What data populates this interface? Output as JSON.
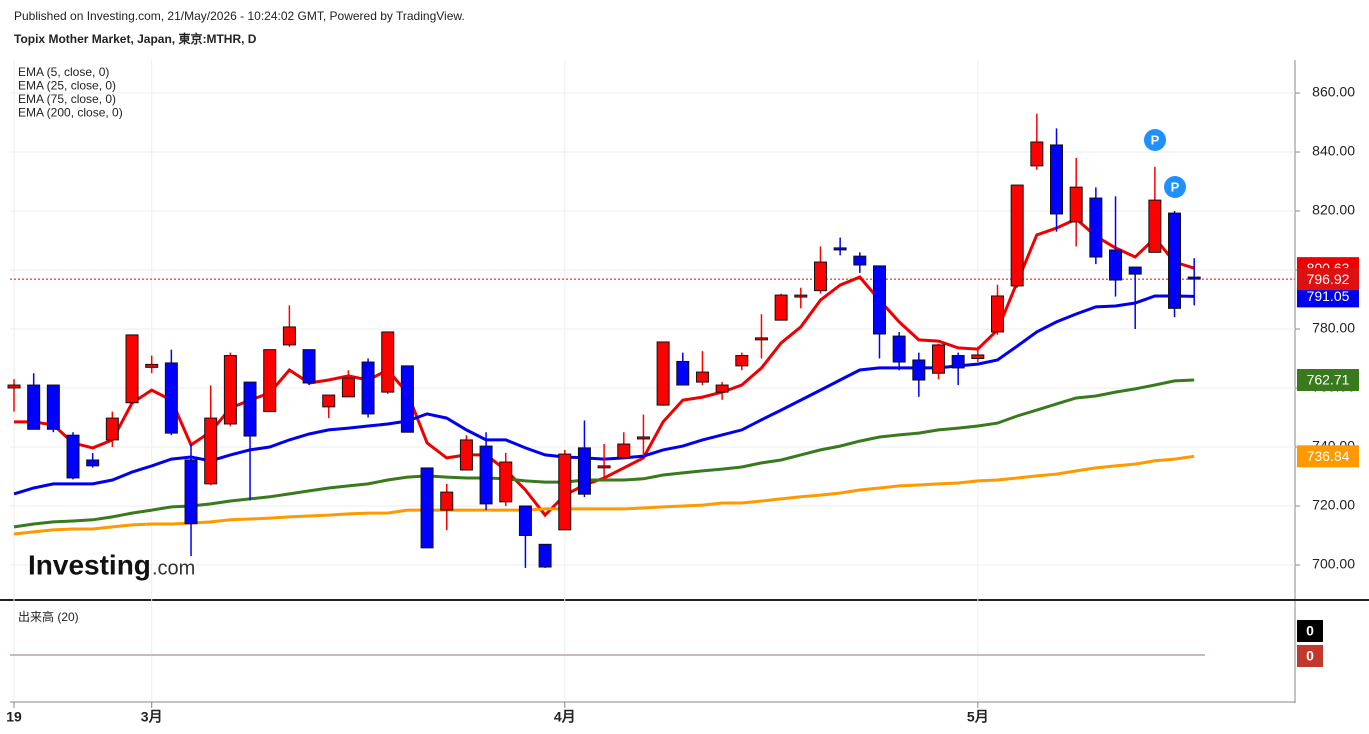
{
  "published": "Published on Investing.com, 21/May/2026 - 10:24:02 GMT, Powered by TradingView.",
  "chart_data": {
    "type": "candlestick",
    "title": "Topix Mother Market, Japan, 東京:MTHR, D",
    "categories": [
      "19",
      null,
      null,
      null,
      null,
      null,
      null,
      "3月",
      null,
      null,
      null,
      null,
      null,
      null,
      null,
      null,
      null,
      null,
      null,
      null,
      null,
      null,
      null,
      null,
      null,
      null,
      null,
      null,
      "4月",
      null,
      null,
      null,
      null,
      null,
      null,
      null,
      null,
      null,
      null,
      null,
      null,
      null,
      null,
      null,
      null,
      null,
      null,
      null,
      null,
      "5月",
      null,
      null,
      null,
      null,
      null,
      null,
      null,
      null,
      null,
      null,
      null
    ],
    "open": [
      760,
      761,
      761,
      744,
      735.6,
      742.4,
      755,
      767,
      768.5,
      735.6,
      727.5,
      747.8,
      762,
      752,
      774.6,
      773,
      753.6,
      757,
      768.8,
      758.6,
      767.5,
      732.9,
      718.6,
      732.2,
      740.3,
      721.4,
      720,
      707,
      711.9,
      739.7,
      733.6,
      736.3,
      743.4,
      754.2,
      769,
      762,
      758.6,
      767.5,
      777,
      783,
      791.5,
      793,
      807.5,
      804.7,
      801.4,
      777.6,
      769.5,
      765,
      771,
      770,
      779,
      794.6,
      835.3,
      842.4,
      816.3,
      824.4,
      806.8,
      801,
      806,
      819.3,
      797.6
    ],
    "high": [
      763,
      765,
      761,
      745,
      738,
      752,
      778,
      771,
      773,
      741,
      760.9,
      772,
      762,
      773,
      788,
      773,
      757.6,
      766,
      770,
      779,
      767.5,
      733,
      727.5,
      744,
      745,
      738,
      720,
      707,
      739,
      749,
      741,
      745,
      751,
      775.6,
      772,
      772.5,
      762,
      772,
      785,
      792,
      794,
      808,
      811,
      806,
      801.4,
      779,
      772,
      775,
      772,
      774,
      795,
      828.8,
      853,
      848,
      838,
      828,
      825,
      801,
      835,
      820,
      804
    ],
    "low": [
      752,
      746,
      745,
      729,
      733,
      740,
      755,
      765,
      744,
      703,
      727,
      747,
      722,
      752,
      774,
      761,
      749.8,
      757,
      750,
      758,
      745,
      705.8,
      711.8,
      732,
      718.6,
      720,
      699,
      699,
      711.9,
      723,
      729,
      736,
      737,
      754,
      761,
      761,
      756,
      766,
      770,
      783,
      787,
      792,
      805,
      799,
      770,
      766,
      757,
      763,
      761,
      768.8,
      778,
      794,
      834,
      813,
      808,
      802,
      791,
      780,
      806,
      784,
      788
    ],
    "close": [
      761,
      746,
      746,
      729.5,
      733.6,
      749.8,
      778,
      768,
      744.7,
      714,
      749.8,
      771,
      743.7,
      773,
      780.7,
      761.7,
      757.6,
      763.4,
      751.2,
      779,
      745,
      705.8,
      724.7,
      742.4,
      720.7,
      734.9,
      710,
      699.3,
      737.6,
      724,
      733.6,
      741,
      743.4,
      775.6,
      761,
      765.4,
      761,
      771,
      777,
      791.5,
      791.5,
      802.7,
      806.8,
      801.7,
      778.3,
      768.8,
      762.7,
      774.6,
      766.8,
      771.2,
      791.2,
      828.8,
      843.4,
      819,
      828.1,
      804.4,
      796.6,
      798.6,
      823.7,
      787,
      796.92
    ],
    "up_color": "#ff0000",
    "down_color": "#0000ff",
    "series": [
      {
        "name": "EMA (5, close, 0)",
        "color": "#ee0000",
        "values": [
          748.5,
          748.5,
          747.5,
          741.4,
          739.7,
          742.4,
          754.9,
          759.3,
          755.9,
          740.7,
          745.1,
          753.2,
          755.9,
          758.3,
          766.1,
          761.7,
          762.7,
          764.1,
          762.7,
          766.1,
          758.3,
          741.4,
          736.3,
          737.3,
          737.3,
          732.2,
          725.4,
          716.9,
          723.7,
          727.1,
          729.5,
          732.9,
          736.3,
          748.5,
          755.9,
          756.9,
          758.6,
          761,
          766.8,
          775.3,
          780.7,
          789.8,
          794.9,
          797.6,
          789.8,
          782.4,
          776.3,
          775.9,
          773.6,
          773.2,
          779.7,
          795.9,
          811.9,
          814.2,
          817.3,
          811.5,
          807.5,
          804.4,
          810.8,
          802.7,
          800.63
        ]
      },
      {
        "name": "EMA (25, close, 0)",
        "color": "#0000ee",
        "values": [
          724.1,
          726.1,
          727.5,
          727.5,
          727.5,
          728.8,
          731.5,
          733.6,
          735.9,
          736.6,
          735.3,
          737.3,
          739,
          740,
          742.4,
          744.4,
          745.8,
          746.4,
          747.1,
          747.8,
          748.8,
          751.2,
          749.8,
          745.8,
          742.4,
          742.4,
          739.7,
          737.3,
          736.6,
          736.3,
          735.9,
          736.3,
          736.9,
          739,
          740.3,
          742.4,
          744.1,
          745.8,
          749.2,
          752.5,
          755.9,
          759.3,
          762.7,
          766.1,
          766.8,
          766.8,
          766.8,
          766.8,
          767.5,
          768.1,
          769.5,
          774.2,
          779,
          782.4,
          785.1,
          787.5,
          787.8,
          788.8,
          791.2,
          791.2,
          791.05
        ]
      },
      {
        "name": "EMA (75, close, 0)",
        "color": "#3a7a1e",
        "values": [
          712.9,
          713.9,
          714.6,
          714.9,
          715.3,
          716.3,
          717.6,
          718.6,
          719.7,
          720,
          720.7,
          721.7,
          722.4,
          723.1,
          724.1,
          725.1,
          726.1,
          726.8,
          727.5,
          728.8,
          729.8,
          730.2,
          729.8,
          729.5,
          729.5,
          729.2,
          728.5,
          728.1,
          728.1,
          728.8,
          728.8,
          728.8,
          729.2,
          730.5,
          731.2,
          731.9,
          732.5,
          733.2,
          734.6,
          735.6,
          737.3,
          739,
          740.3,
          742,
          743.4,
          744.1,
          744.7,
          745.8,
          746.4,
          747.1,
          748.1,
          750.5,
          752.5,
          754.6,
          756.6,
          757.3,
          758.6,
          759.7,
          761,
          762.4,
          762.71
        ]
      },
      {
        "name": "EMA (200, close, 0)",
        "color": "#ff9900",
        "values": [
          710.5,
          711.2,
          711.9,
          712.2,
          712.2,
          712.9,
          713.6,
          713.9,
          713.9,
          714.2,
          714.6,
          715.3,
          715.6,
          715.9,
          716.3,
          716.6,
          716.9,
          717.3,
          717.6,
          717.6,
          718.6,
          718.6,
          718.6,
          718.6,
          718.6,
          718.6,
          718.6,
          719,
          719,
          719,
          719,
          719,
          719.3,
          719.7,
          720,
          720.3,
          721,
          721,
          721.7,
          722.4,
          723.1,
          723.7,
          724.4,
          725.4,
          726.1,
          726.8,
          727.1,
          727.5,
          727.8,
          728.5,
          728.8,
          729.5,
          730.2,
          730.8,
          731.9,
          732.9,
          733.6,
          734.2,
          735.3,
          735.9,
          736.84
        ]
      }
    ],
    "last_close_color": "#dd1111",
    "ylim": [
      688.8,
      871.2
    ],
    "yticks": [
      {
        "value": 700,
        "label": "700.00"
      },
      {
        "value": 720,
        "label": "720.00"
      },
      {
        "value": 740,
        "label": "740.00"
      },
      {
        "value": 760,
        "label": "760.00"
      },
      {
        "value": 780,
        "label": "780.00"
      },
      {
        "value": 800,
        "label": "800.00"
      },
      {
        "value": 820,
        "label": "820.00"
      },
      {
        "value": 840,
        "label": "840.00"
      },
      {
        "value": 860,
        "label": "860.00"
      }
    ],
    "grid": true,
    "annotations": [
      "P",
      "P"
    ],
    "volume": {
      "name": "出来高 (20)",
      "values": [
        0,
        0
      ]
    }
  },
  "logo": {
    "brand": "Investing",
    "suffix": ".com"
  }
}
